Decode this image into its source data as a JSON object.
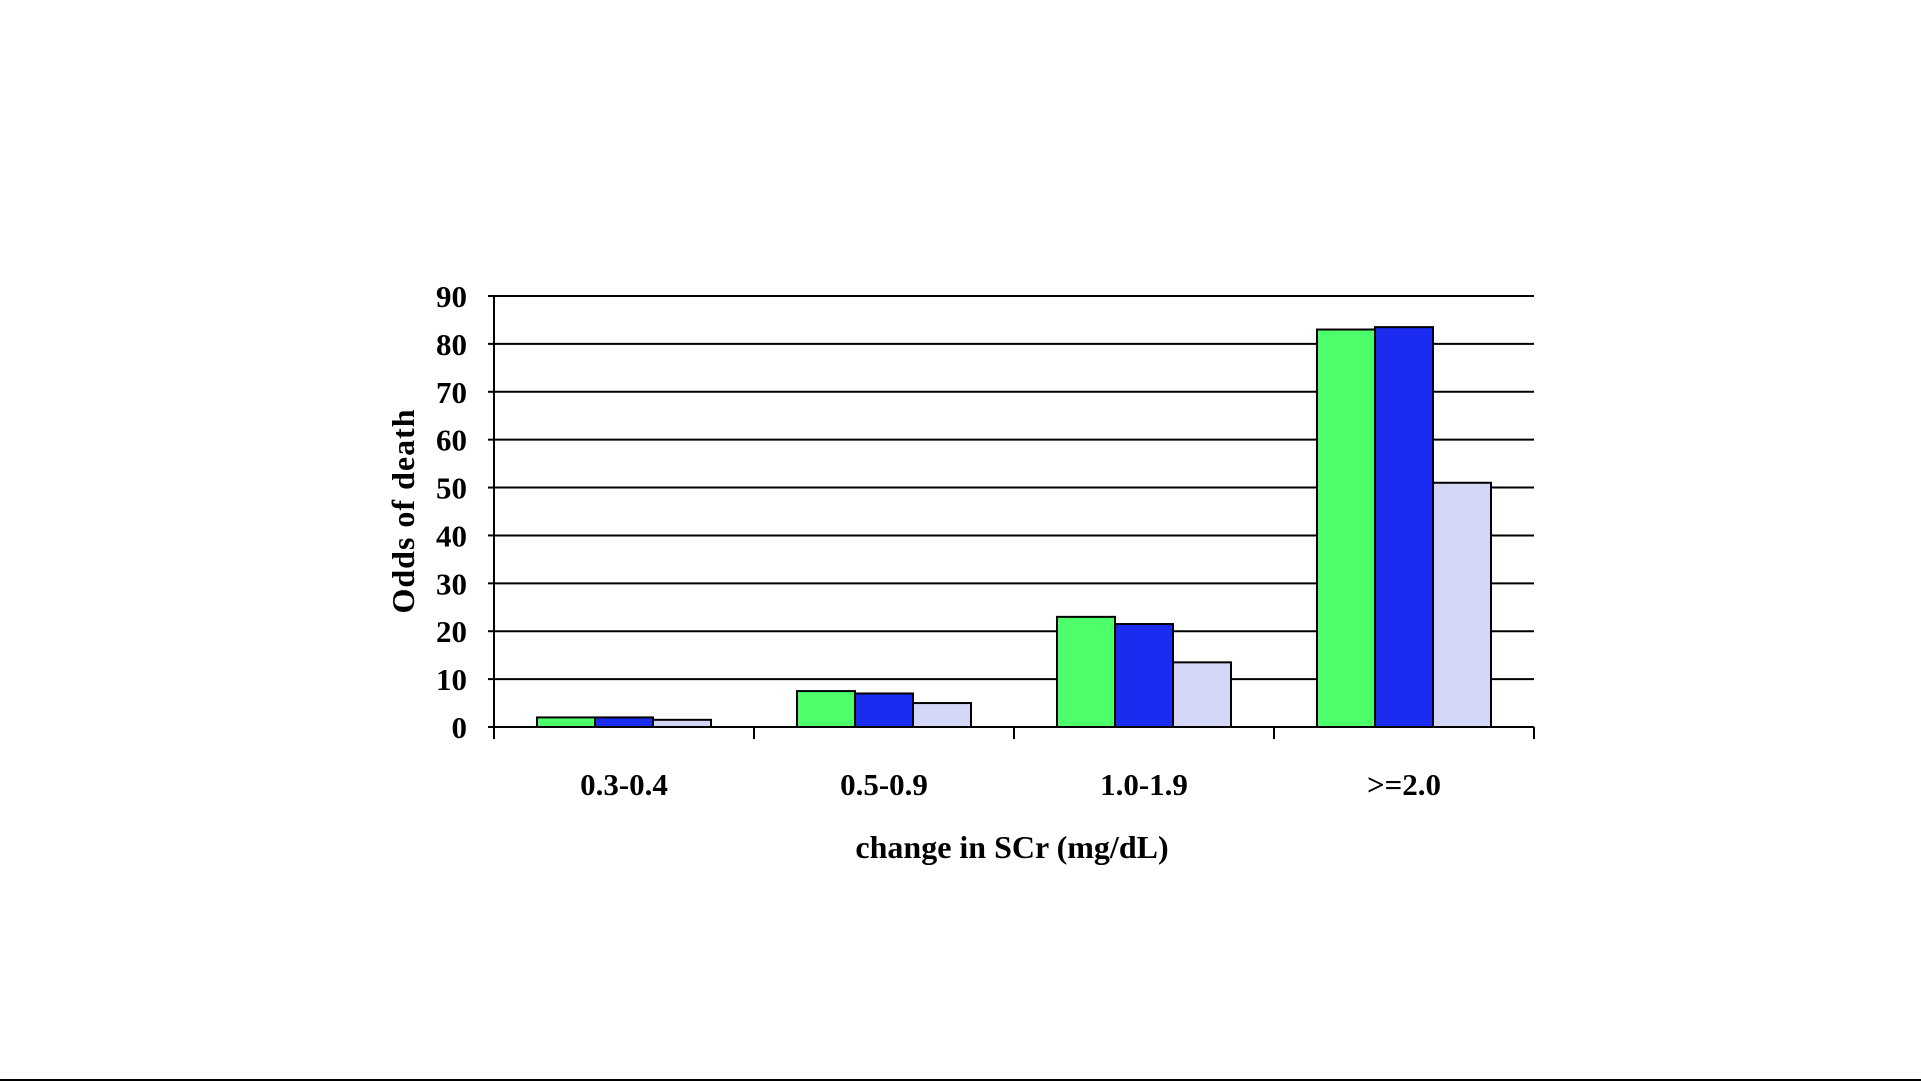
{
  "chart_data": {
    "type": "bar",
    "title": "",
    "xlabel": "change in SCr (mg/dL)",
    "ylabel": "Odds of death",
    "ylim": [
      0,
      90
    ],
    "yticks": [
      0,
      10,
      20,
      30,
      40,
      50,
      60,
      70,
      80,
      90
    ],
    "grid": true,
    "legend": "none",
    "categories": [
      "0.3-0.4",
      "0.5-0.9",
      "1.0-1.9",
      ">=2.0"
    ],
    "series": [
      {
        "values": [
          2.0,
          7.5,
          23.0,
          83.0
        ],
        "color": "#4dff6a"
      },
      {
        "values": [
          2.0,
          7.0,
          21.5,
          83.5
        ],
        "color": "#1a2cf0"
      },
      {
        "values": [
          1.5,
          5.0,
          13.5,
          51.0
        ],
        "color": "#d4d6f7"
      }
    ]
  }
}
